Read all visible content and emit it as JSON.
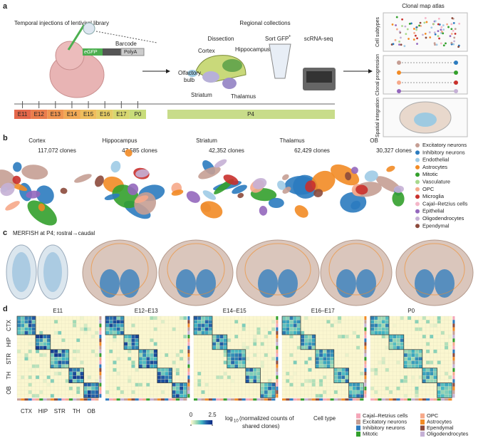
{
  "panel_a": {
    "label": "a",
    "injection_title": "Temporal injections of lentiviral library",
    "barcode": "Barcode",
    "egfp": "eGFP",
    "polya": "PolyA",
    "collections_title": "Regional collections",
    "dissection": "Dissection",
    "sort": "Sort GFP",
    "sort_sup": "+",
    "scrnaseq": "scRNA-seq",
    "regions": [
      "Cortex",
      "Hippocampus",
      "Olfactory",
      "bulb",
      "Striatum",
      "Thalamus"
    ],
    "atlas_title": "Clonal map atlas",
    "atlas_rows": [
      "Cell subtypes",
      "Clonal progression",
      "Spatial integration"
    ],
    "timepoints": [
      "E11",
      "E12",
      "E13",
      "E14",
      "E15",
      "E16",
      "E17",
      "P0"
    ],
    "collection_time": "P4"
  },
  "panel_b": {
    "label": "b",
    "regions": [
      {
        "name": "Cortex",
        "clones": "117,072 clones"
      },
      {
        "name": "Hippocampus",
        "clones": "47,585 clones"
      },
      {
        "name": "Striatum",
        "clones": "42,352 clones"
      },
      {
        "name": "Thalamus",
        "clones": "62,429 clones"
      },
      {
        "name": "OB",
        "clones": "30,327 clones"
      }
    ],
    "legend": [
      {
        "name": "Excitatory neurons",
        "color": "#c59e94"
      },
      {
        "name": "Inhibitory neurons",
        "color": "#2b7bbf"
      },
      {
        "name": "Endothelial",
        "color": "#9fcbe6"
      },
      {
        "name": "Astrocytes",
        "color": "#f28b25"
      },
      {
        "name": "Mitotic",
        "color": "#33a02c"
      },
      {
        "name": "Vasculature",
        "color": "#a9d98d"
      },
      {
        "name": "OPC",
        "color": "#f6a98a"
      },
      {
        "name": "Microglia",
        "color": "#c9302c"
      },
      {
        "name": "Cajal–Retzius cells",
        "color": "#f4b6c8"
      },
      {
        "name": "Epithelial",
        "color": "#9467bd"
      },
      {
        "name": "Oligodendrocytes",
        "color": "#c5b0d5"
      },
      {
        "name": "Ependymal",
        "color": "#8c4a3c"
      }
    ]
  },
  "panel_c": {
    "label": "c",
    "title": "MERFISH at P4; rostral→caudal"
  },
  "panel_d": {
    "label": "d",
    "stages": [
      "E11",
      "E12–E13",
      "E14–E15",
      "E16–E17",
      "P0"
    ],
    "regions": [
      "CTX",
      "HIP",
      "STR",
      "TH",
      "OB"
    ],
    "colorbar": {
      "ticks": [
        0,
        2.5
      ],
      "title": [
        "log",
        "10",
        "(normalized counts of",
        "shared clones)"
      ]
    },
    "legend_title": "Cell type",
    "legend": [
      {
        "name": "Cajal–Retzius cells",
        "color": "#f4a6b8"
      },
      {
        "name": "Excitatory neurons",
        "color": "#c59e94"
      },
      {
        "name": "Inhibitory neurons",
        "color": "#2b7bbf"
      },
      {
        "name": "Mitotic",
        "color": "#33a02c"
      },
      {
        "name": "OPC",
        "color": "#f6a98a"
      },
      {
        "name": "Astrocytes",
        "color": "#f28b25"
      },
      {
        "name": "Ependymal",
        "color": "#8c4a3c"
      },
      {
        "name": "Oligodendrocytes",
        "color": "#c5b0d5"
      }
    ]
  }
}
